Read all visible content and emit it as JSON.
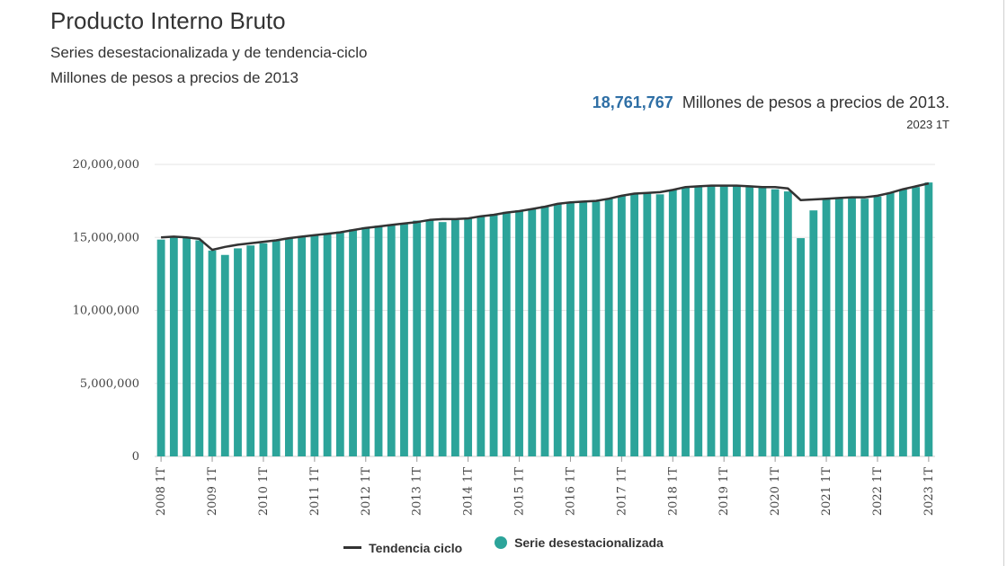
{
  "header": {
    "title": "Producto Interno Bruto",
    "subtitle1": "Series desestacionalizada y de tendencia-ciclo",
    "subtitle2": "Millones de pesos a precios de 2013"
  },
  "headline": {
    "value": "18,761,767",
    "unit": "Millones de pesos a precios de 2013.",
    "period": "2023 1T"
  },
  "legend": {
    "trend_label": "Tendencia ciclo",
    "bar_label": "Serie desestacionalizada"
  },
  "colors": {
    "bar": "#2ca49a",
    "trend": "#333333",
    "grid": "#e6e6e6",
    "headline_value": "#2f6fa5"
  },
  "chart_data": {
    "type": "bar",
    "title": "Producto Interno Bruto",
    "ylim": [
      0,
      20000000
    ],
    "yticks": [
      0,
      5000000,
      10000000,
      15000000,
      20000000
    ],
    "ytick_labels": [
      "0",
      "5,000,000",
      "10,000,000",
      "15,000,000",
      "20,000,000"
    ],
    "categories": [
      "2008 1T",
      "2008 2T",
      "2008 3T",
      "2008 4T",
      "2009 1T",
      "2009 2T",
      "2009 3T",
      "2009 4T",
      "2010 1T",
      "2010 2T",
      "2010 3T",
      "2010 4T",
      "2011 1T",
      "2011 2T",
      "2011 3T",
      "2011 4T",
      "2012 1T",
      "2012 2T",
      "2012 3T",
      "2012 4T",
      "2013 1T",
      "2013 2T",
      "2013 3T",
      "2013 4T",
      "2014 1T",
      "2014 2T",
      "2014 3T",
      "2014 4T",
      "2015 1T",
      "2015 2T",
      "2015 3T",
      "2015 4T",
      "2016 1T",
      "2016 2T",
      "2016 3T",
      "2016 4T",
      "2017 1T",
      "2017 2T",
      "2017 3T",
      "2017 4T",
      "2018 1T",
      "2018 2T",
      "2018 3T",
      "2018 4T",
      "2019 1T",
      "2019 2T",
      "2019 3T",
      "2019 4T",
      "2020 1T",
      "2020 2T",
      "2020 3T",
      "2020 4T",
      "2021 1T",
      "2021 2T",
      "2021 3T",
      "2021 4T",
      "2022 1T",
      "2022 2T",
      "2022 3T",
      "2022 4T",
      "2023 1T"
    ],
    "xtick_labels": [
      "2008 1T",
      "2009 1T",
      "2010 1T",
      "2011 1T",
      "2012 1T",
      "2013 1T",
      "2014 1T",
      "2015 1T",
      "2016 1T",
      "2017 1T",
      "2018 1T",
      "2019 1T",
      "2020 1T",
      "2021 1T",
      "2022 1T",
      "2023 1T"
    ],
    "series": [
      {
        "name": "Serie desestacionalizada",
        "kind": "bar",
        "values": [
          14850000,
          15000000,
          14950000,
          14800000,
          14100000,
          13800000,
          14250000,
          14450000,
          14600000,
          14800000,
          14950000,
          15050000,
          15150000,
          15250000,
          15400000,
          15550000,
          15700000,
          15800000,
          15900000,
          16000000,
          16150000,
          16200000,
          16050000,
          16200000,
          16300000,
          16450000,
          16600000,
          16750000,
          16850000,
          16950000,
          17150000,
          17300000,
          17350000,
          17400000,
          17450000,
          17650000,
          17850000,
          17950000,
          18000000,
          17950000,
          18250000,
          18400000,
          18450000,
          18500000,
          18500000,
          18500000,
          18450000,
          18400000,
          18300000,
          18150000,
          14950000,
          16850000,
          17600000,
          17700000,
          17700000,
          17650000,
          17800000,
          18050000,
          18300000,
          18450000,
          18761767
        ]
      },
      {
        "name": "Tendencia ciclo",
        "kind": "line",
        "values": [
          15000000,
          15050000,
          15000000,
          14900000,
          14150000,
          14350000,
          14500000,
          14600000,
          14700000,
          14800000,
          14950000,
          15050000,
          15150000,
          15250000,
          15350000,
          15500000,
          15650000,
          15750000,
          15850000,
          15950000,
          16050000,
          16200000,
          16250000,
          16250000,
          16300000,
          16450000,
          16550000,
          16700000,
          16800000,
          16950000,
          17100000,
          17300000,
          17400000,
          17450000,
          17500000,
          17650000,
          17850000,
          18000000,
          18050000,
          18100000,
          18250000,
          18450000,
          18500000,
          18550000,
          18550000,
          18550000,
          18500000,
          18450000,
          18450000,
          18350000,
          17550000,
          17600000,
          17650000,
          17700000,
          17750000,
          17750000,
          17850000,
          18050000,
          18300000,
          18500000,
          18700000
        ]
      }
    ],
    "grid": true,
    "legend": "bottom-center"
  }
}
